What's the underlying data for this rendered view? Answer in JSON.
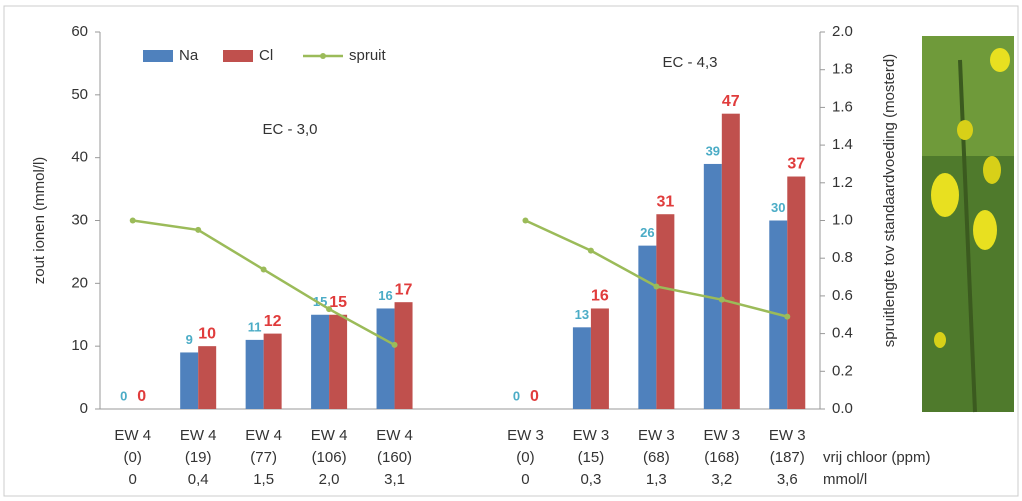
{
  "chart_data": {
    "type": "bar",
    "categories": [
      [
        "EW 4",
        "(0)",
        "0"
      ],
      [
        "EW 4",
        "(19)",
        "0,4"
      ],
      [
        "EW 4",
        "(77)",
        "1,5"
      ],
      [
        "EW 4",
        "(106)",
        "2,0"
      ],
      [
        "EW 4",
        "(160)",
        "3,1"
      ],
      null,
      [
        "EW 3",
        "(0)",
        "0"
      ],
      [
        "EW 3",
        "(15)",
        "0,3"
      ],
      [
        "EW 3",
        "(68)",
        "1,3"
      ],
      [
        "EW 3",
        "(168)",
        "3,2"
      ],
      [
        "EW 3",
        "(187)",
        "3,6"
      ]
    ],
    "series": [
      {
        "name": "Na",
        "color": "#4f81bd",
        "label_color": "#4bacc6",
        "values": [
          0,
          9,
          11,
          15,
          16,
          null,
          0,
          13,
          26,
          39,
          30
        ]
      },
      {
        "name": "Cl",
        "color": "#c0504d",
        "label_color": "#e03c3c",
        "values": [
          0,
          10,
          12,
          15,
          17,
          null,
          0,
          16,
          31,
          47,
          37
        ]
      },
      {
        "name": "spruit",
        "color": "#9bbb59",
        "type": "line",
        "axis": "y2",
        "values": [
          1.0,
          0.95,
          0.74,
          0.53,
          0.34,
          null,
          1.0,
          0.84,
          0.65,
          0.58,
          0.49
        ]
      }
    ],
    "ylabel": "zout ionen (mmol/l)",
    "y2label": "spruitlengte tov standaardvoeding (mosterd)",
    "ylim": [
      0,
      60
    ],
    "yticks": [
      0,
      10,
      20,
      30,
      40,
      50,
      60
    ],
    "y2lim": [
      0,
      2
    ],
    "y2ticks": [
      {
        "value": 0,
        "label": "0.0"
      },
      0.2,
      0.4,
      0.6,
      0.8,
      {
        "value": 1,
        "label": "1.0"
      },
      1.2,
      1.4,
      1.6,
      1.8,
      {
        "value": 2,
        "label": "2.0"
      }
    ],
    "annotations": [
      "EC - 3,0",
      "EC - 4,3"
    ],
    "row_labels": [
      "vrij chloor (ppm)",
      "mmol/l"
    ],
    "legend": "top-left"
  }
}
